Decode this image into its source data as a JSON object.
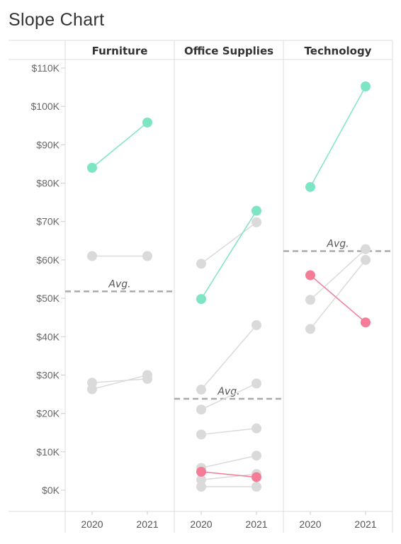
{
  "title": "Slope Chart",
  "chart_data": {
    "type": "line",
    "title": "Slope Chart",
    "x": [
      "2020",
      "2021"
    ],
    "ylim": [
      0,
      110000
    ],
    "y_ticks": [
      0,
      10000,
      20000,
      30000,
      40000,
      50000,
      60000,
      70000,
      80000,
      90000,
      100000,
      110000
    ],
    "y_tick_labels": [
      "$0K",
      "$10K",
      "$20K",
      "$30K",
      "$40K",
      "$50K",
      "$60K",
      "$70K",
      "$80K",
      "$90K",
      "$100K",
      "$110K"
    ],
    "avg_label": "Avg.",
    "colors": {
      "increase": "#7ee5c4",
      "decrease": "#f47c97",
      "neutral": "#dadada",
      "avg_line": "#aaaaaa"
    },
    "panels": [
      {
        "name": "Furniture",
        "average": 51800,
        "series": [
          {
            "values": [
              84000,
              95800
            ],
            "status": "increase"
          },
          {
            "values": [
              61000,
              61000
            ],
            "status": "neutral"
          },
          {
            "values": [
              28000,
              29000
            ],
            "status": "neutral"
          },
          {
            "values": [
              26300,
              30000
            ],
            "status": "neutral"
          }
        ]
      },
      {
        "name": "Office Supplies",
        "average": 23800,
        "series": [
          {
            "values": [
              49800,
              72800
            ],
            "status": "increase"
          },
          {
            "values": [
              59000,
              69800
            ],
            "status": "neutral"
          },
          {
            "values": [
              26200,
              43000
            ],
            "status": "neutral"
          },
          {
            "values": [
              21000,
              27800
            ],
            "status": "neutral"
          },
          {
            "values": [
              14500,
              16100
            ],
            "status": "neutral"
          },
          {
            "values": [
              5800,
              9000
            ],
            "status": "neutral"
          },
          {
            "values": [
              2700,
              4200
            ],
            "status": "neutral"
          },
          {
            "values": [
              900,
              900
            ],
            "status": "neutral"
          },
          {
            "values": [
              4800,
              3400
            ],
            "status": "decrease"
          }
        ]
      },
      {
        "name": "Technology",
        "average": 62300,
        "series": [
          {
            "values": [
              79000,
              105200
            ],
            "status": "increase"
          },
          {
            "values": [
              49600,
              62800
            ],
            "status": "neutral"
          },
          {
            "values": [
              42000,
              60000
            ],
            "status": "neutral"
          },
          {
            "values": [
              56000,
              43700
            ],
            "status": "decrease"
          }
        ]
      }
    ]
  }
}
